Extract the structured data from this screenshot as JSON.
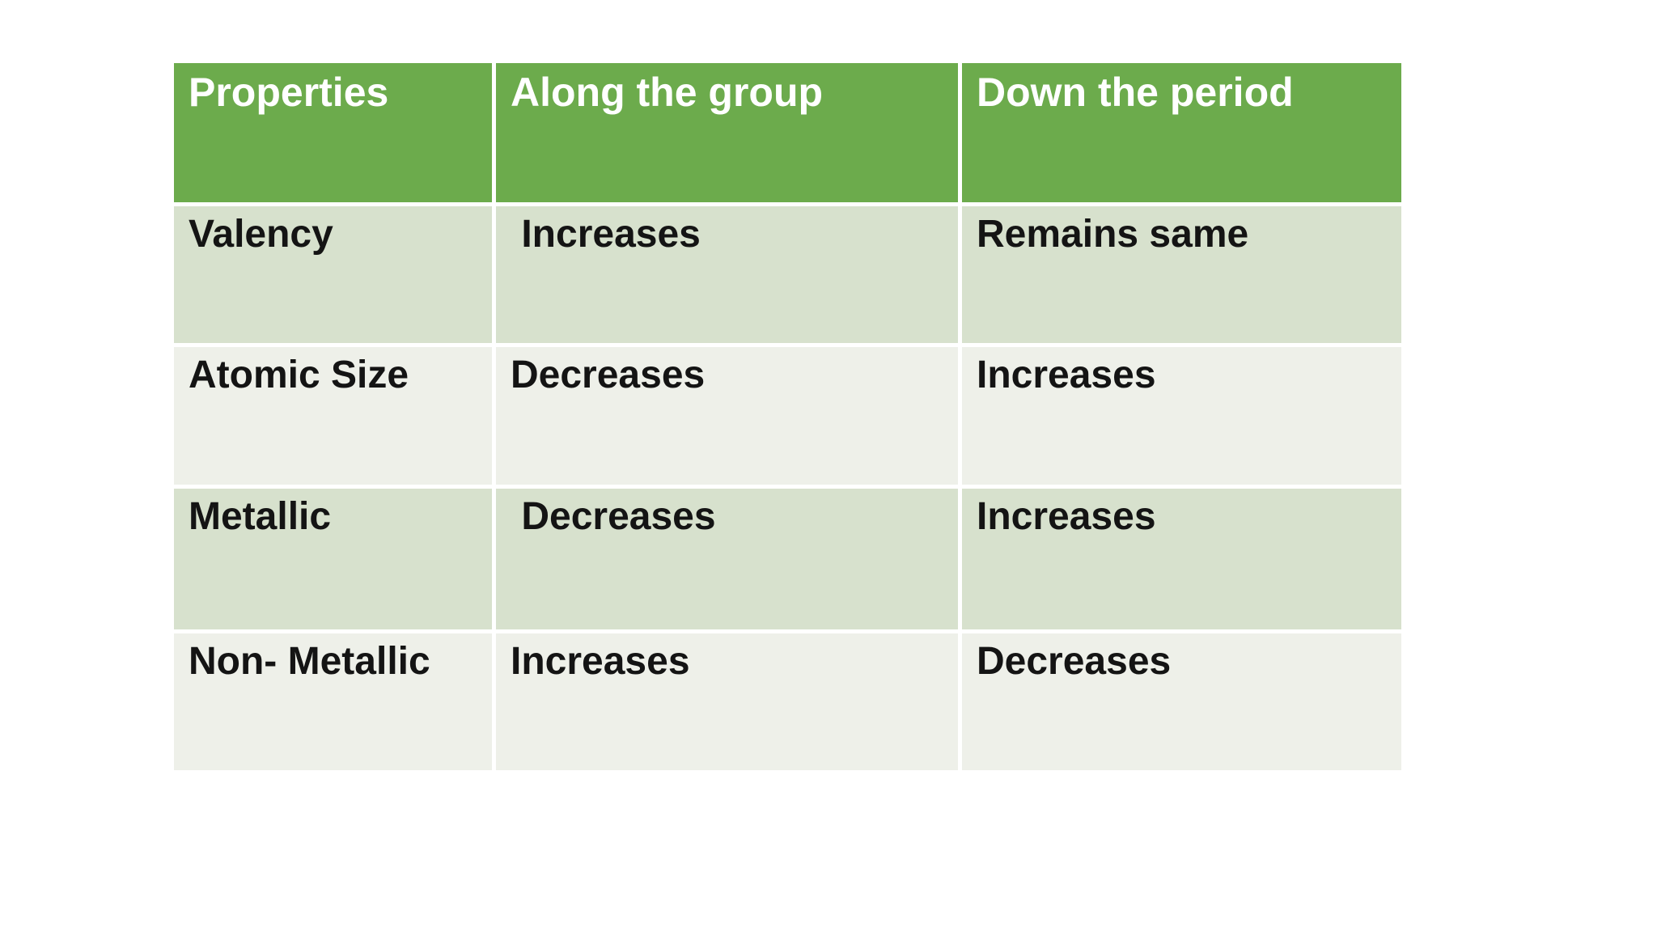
{
  "slide": {
    "background_color": "#ffffff"
  },
  "table": {
    "columns": [
      "Properties",
      "Along the group",
      "Down the period"
    ],
    "rows": [
      {
        "label": "Valency",
        "along_the_group": " Increases",
        "down_the_period": "Remains same"
      },
      {
        "label": "Atomic Size",
        "along_the_group": "Decreases",
        "down_the_period": "Increases"
      },
      {
        "label": "Metallic",
        "along_the_group": " Decreases",
        "down_the_period": "Increases"
      },
      {
        "label": "Non- Metallic",
        "along_the_group": "Increases",
        "down_the_period": "Decreases"
      }
    ],
    "colors": {
      "header_bg": "#6cab4c",
      "header_text": "#ffffff",
      "band_dark": "#d7e1cd",
      "band_light": "#eef0e9",
      "body_text": "#141414",
      "gap_lines": "#ffffff"
    }
  }
}
